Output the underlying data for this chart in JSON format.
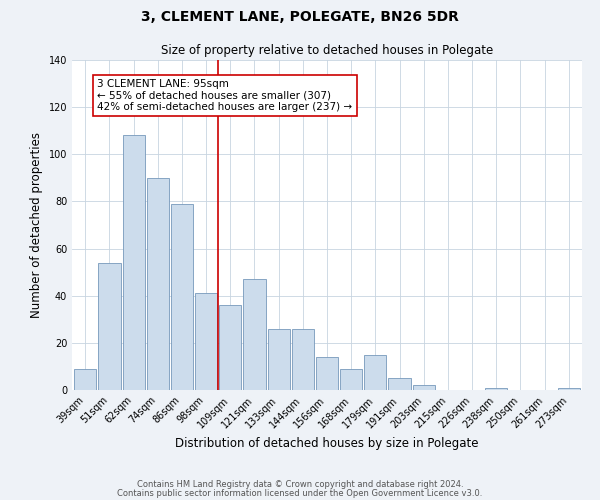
{
  "title": "3, CLEMENT LANE, POLEGATE, BN26 5DR",
  "subtitle": "Size of property relative to detached houses in Polegate",
  "xlabel": "Distribution of detached houses by size in Polegate",
  "ylabel": "Number of detached properties",
  "bar_labels": [
    "39sqm",
    "51sqm",
    "62sqm",
    "74sqm",
    "86sqm",
    "98sqm",
    "109sqm",
    "121sqm",
    "133sqm",
    "144sqm",
    "156sqm",
    "168sqm",
    "179sqm",
    "191sqm",
    "203sqm",
    "215sqm",
    "226sqm",
    "238sqm",
    "250sqm",
    "261sqm",
    "273sqm"
  ],
  "bar_values": [
    9,
    54,
    108,
    90,
    79,
    41,
    36,
    47,
    26,
    26,
    14,
    9,
    15,
    5,
    2,
    0,
    0,
    1,
    0,
    0,
    1
  ],
  "bar_color": "#ccdcec",
  "bar_edge_color": "#7799bb",
  "vline_x_index": 5,
  "vline_color": "#cc0000",
  "annotation_line1": "3 CLEMENT LANE: 95sqm",
  "annotation_line2": "← 55% of detached houses are smaller (307)",
  "annotation_line3": "42% of semi-detached houses are larger (237) →",
  "annotation_box_color": "#ffffff",
  "annotation_box_edge": "#cc0000",
  "ylim": [
    0,
    140
  ],
  "yticks": [
    0,
    20,
    40,
    60,
    80,
    100,
    120,
    140
  ],
  "footer_line1": "Contains HM Land Registry data © Crown copyright and database right 2024.",
  "footer_line2": "Contains public sector information licensed under the Open Government Licence v3.0.",
  "bg_color": "#eef2f7",
  "plot_bg_color": "#ffffff",
  "grid_color": "#c8d4e0",
  "title_fontsize": 10,
  "subtitle_fontsize": 8.5,
  "tick_fontsize": 7,
  "label_fontsize": 8.5,
  "annotation_fontsize": 7.5,
  "footer_fontsize": 6
}
